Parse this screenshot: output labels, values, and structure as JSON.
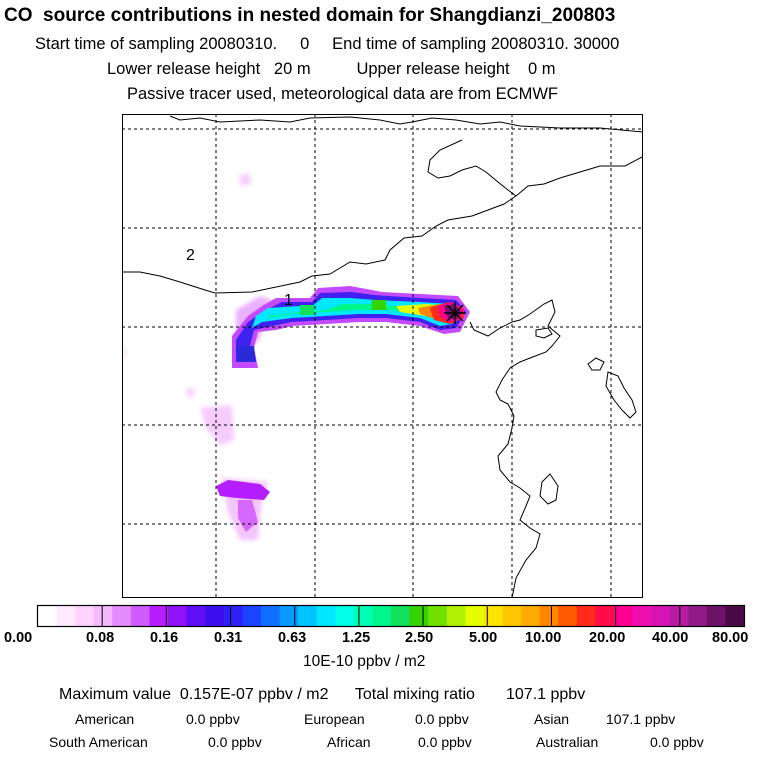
{
  "header": {
    "title": "CO  source contributions in nested domain for Shangdianzi_200803",
    "sampling": "Start time of sampling 20080310.     0     End time of sampling 20080310. 30000",
    "release": "Lower release height   20 m          Upper release height    0 m",
    "tracer": "Passive tracer used, meteorological data are from ECMWF"
  },
  "map": {
    "labels": {
      "region_1": "1",
      "region_2": "2"
    }
  },
  "colorbar": {
    "ticks": [
      "0.00",
      "0.08",
      "0.16",
      "0.31",
      "0.63",
      "1.25",
      "2.50",
      "5.00",
      "10.00",
      "20.00",
      "40.00",
      "80.00"
    ],
    "units": "10E-10 ppbv / m2",
    "colors": [
      "#ffffff",
      "#ffeaff",
      "#ffd2ff",
      "#f4b8ff",
      "#e28cff",
      "#cf5cff",
      "#b71eff",
      "#8f12f8",
      "#5f10f6",
      "#3d0fee",
      "#2f20f8",
      "#1c44ff",
      "#0f6eff",
      "#0a9aff",
      "#00c4ff",
      "#00e8ff",
      "#00ffe6",
      "#00ffb4",
      "#00f58c",
      "#10e05a",
      "#34d400",
      "#6fe000",
      "#b0f000",
      "#e6ff00",
      "#ffe400",
      "#ffc800",
      "#ffaa00",
      "#ff8600",
      "#ff5a00",
      "#ff2a1a",
      "#ff0a4a",
      "#ff0090",
      "#ee10b0",
      "#d614b4",
      "#b81aa4",
      "#901a88",
      "#6e1268",
      "#4a0a48"
    ]
  },
  "stats": {
    "max_line": "Maximum value  0.157E-07 ppbv / m2      Total mixing ratio       107.1 ppbv",
    "row1": [
      {
        "region": "American",
        "value": "0.0 ppbv"
      },
      {
        "region": "European",
        "value": "0.0 ppbv"
      },
      {
        "region": "Asian",
        "value": "107.1 ppbv"
      }
    ],
    "row2": [
      {
        "region": "South American",
        "value": "0.0 ppbv"
      },
      {
        "region": "African",
        "value": "0.0 ppbv"
      },
      {
        "region": "Australian",
        "value": "0.0 ppbv"
      }
    ]
  }
}
